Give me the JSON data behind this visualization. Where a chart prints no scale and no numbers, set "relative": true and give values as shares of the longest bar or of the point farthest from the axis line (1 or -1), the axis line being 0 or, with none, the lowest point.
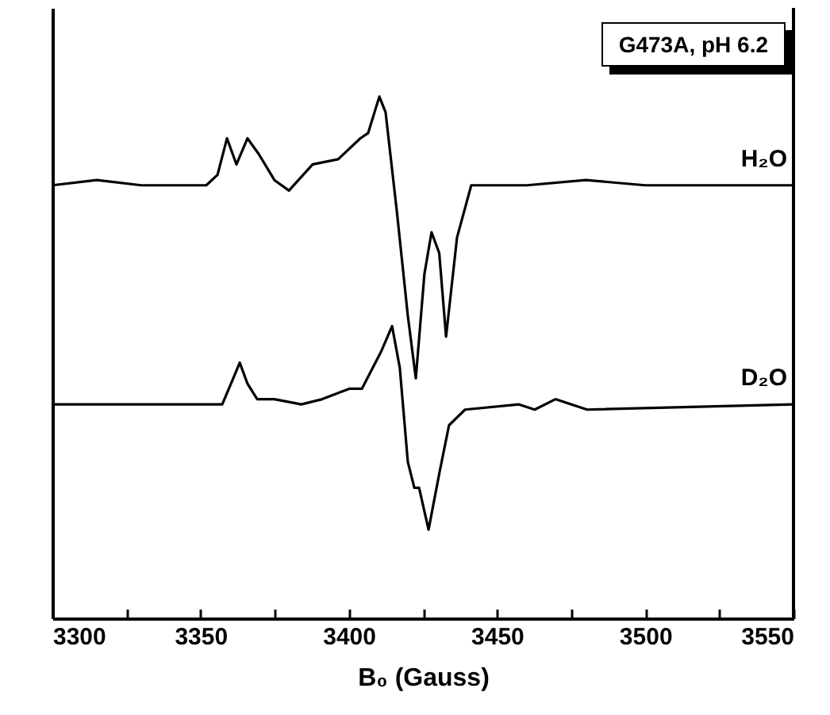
{
  "chart_data": {
    "type": "line",
    "title": "G473A, pH 6.2",
    "xlabel": "B₀ (Gauss)",
    "relative": true,
    "grid": false,
    "line_style": "solid",
    "marker": "none",
    "xlim": [
      3300,
      3550
    ],
    "xticks": [
      3300,
      {
        "value": 3325,
        "label": null
      },
      3350,
      {
        "value": 3375,
        "label": null
      },
      3400,
      {
        "value": 3425,
        "label": null
      },
      3450,
      {
        "value": 3475,
        "label": null
      },
      3500,
      {
        "value": 3525,
        "label": null
      },
      3550
    ],
    "series": [
      {
        "name": "H₂O",
        "color": "#000000",
        "x": [
          3300,
          3315,
          3330,
          3345,
          3351.9,
          3355.7,
          3358.9,
          3362.1,
          3365.8,
          3369.6,
          3374.9,
          3379.8,
          3387.8,
          3396.4,
          3403.9,
          3406.5,
          3410.3,
          3412.4,
          3416.2,
          3419.9,
          3422.6,
          3425.5,
          3427.9,
          3430.5,
          3432.8,
          3436.5,
          3441.3,
          3460,
          3480,
          3500,
          3520,
          3550
        ],
        "values": [
          0.83,
          0.84,
          0.83,
          0.83,
          0.83,
          0.85,
          0.92,
          0.87,
          0.92,
          0.89,
          0.84,
          0.82,
          0.87,
          0.88,
          0.92,
          0.93,
          1.0,
          0.97,
          0.78,
          0.58,
          0.46,
          0.66,
          0.74,
          0.7,
          0.54,
          0.73,
          0.83,
          0.83,
          0.84,
          0.83,
          0.83,
          0.83
        ]
      },
      {
        "name": "D₂O",
        "color": "#000000",
        "x": [
          3300,
          3330,
          3357.3,
          3361.0,
          3363.2,
          3365.8,
          3369.1,
          3374.9,
          3384.0,
          3391.0,
          3400.1,
          3404.4,
          3410.8,
          3414.6,
          3417.2,
          3419.9,
          3422.1,
          3423.7,
          3426.9,
          3430.6,
          3433.8,
          3439.2,
          3457.4,
          3462.7,
          3469.7,
          3480.4,
          3550
        ],
        "values": [
          0.41,
          0.41,
          0.41,
          0.46,
          0.49,
          0.45,
          0.42,
          0.42,
          0.41,
          0.42,
          0.44,
          0.44,
          0.51,
          0.56,
          0.48,
          0.3,
          0.25,
          0.25,
          0.17,
          0.28,
          0.37,
          0.4,
          0.41,
          0.4,
          0.42,
          0.4,
          0.41
        ]
      }
    ]
  }
}
